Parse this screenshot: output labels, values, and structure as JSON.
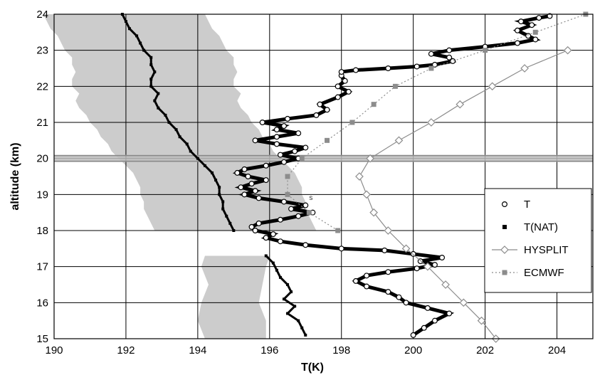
{
  "chart_data": {
    "type": "scatter",
    "xlabel": "T(K)",
    "ylabel": "altitude (km)",
    "xlim": [
      190,
      205
    ],
    "ylim": [
      15,
      24
    ],
    "xticks": [
      "190",
      "192",
      "194",
      "196",
      "198",
      "200",
      "202",
      "204"
    ],
    "yticks": [
      "15",
      "16",
      "17",
      "18",
      "19",
      "20",
      "21",
      "22",
      "23",
      "24"
    ],
    "grid": true,
    "legend_position": "lower-right",
    "annotation": "s",
    "highlight_band": {
      "altitude_km": 20.0,
      "color": "#bdbdbd"
    },
    "nat_uncertainty_band_color": "#cccccc",
    "series": [
      {
        "name": "T",
        "marker": "open-circle",
        "color": "#000000",
        "points": [
          [
            200.0,
            15.1
          ],
          [
            200.3,
            15.3
          ],
          [
            200.6,
            15.5
          ],
          [
            201.0,
            15.7
          ],
          [
            200.4,
            15.85
          ],
          [
            199.8,
            16.0
          ],
          [
            199.6,
            16.15
          ],
          [
            199.3,
            16.3
          ],
          [
            198.7,
            16.45
          ],
          [
            198.4,
            16.6
          ],
          [
            198.7,
            16.75
          ],
          [
            199.3,
            16.85
          ],
          [
            200.1,
            16.95
          ],
          [
            200.6,
            17.05
          ],
          [
            200.2,
            17.15
          ],
          [
            200.8,
            17.25
          ],
          [
            200.0,
            17.35
          ],
          [
            199.2,
            17.45
          ],
          [
            198.0,
            17.5
          ],
          [
            197.0,
            17.6
          ],
          [
            196.3,
            17.7
          ],
          [
            195.9,
            17.8
          ],
          [
            196.1,
            17.9
          ],
          [
            195.6,
            18.0
          ],
          [
            195.5,
            18.1
          ],
          [
            195.7,
            18.2
          ],
          [
            196.3,
            18.3
          ],
          [
            196.8,
            18.4
          ],
          [
            197.2,
            18.5
          ],
          [
            196.6,
            18.6
          ],
          [
            197.0,
            18.7
          ],
          [
            196.4,
            18.8
          ],
          [
            195.7,
            18.9
          ],
          [
            195.3,
            19.0
          ],
          [
            195.6,
            19.1
          ],
          [
            195.2,
            19.2
          ],
          [
            195.5,
            19.3
          ],
          [
            195.9,
            19.4
          ],
          [
            195.4,
            19.5
          ],
          [
            195.1,
            19.6
          ],
          [
            195.3,
            19.7
          ],
          [
            195.9,
            19.8
          ],
          [
            196.4,
            19.9
          ],
          [
            196.8,
            20.0
          ],
          [
            196.3,
            20.1
          ],
          [
            196.7,
            20.2
          ],
          [
            197.0,
            20.3
          ],
          [
            196.2,
            20.4
          ],
          [
            195.6,
            20.5
          ],
          [
            196.2,
            20.6
          ],
          [
            196.8,
            20.7
          ],
          [
            196.2,
            20.8
          ],
          [
            196.4,
            20.9
          ],
          [
            195.8,
            21.0
          ],
          [
            196.5,
            21.1
          ],
          [
            197.3,
            21.2
          ],
          [
            197.6,
            21.35
          ],
          [
            197.4,
            21.5
          ],
          [
            197.9,
            21.7
          ],
          [
            198.2,
            21.85
          ],
          [
            197.9,
            22.0
          ],
          [
            198.1,
            22.15
          ],
          [
            198.0,
            22.3
          ],
          [
            198.0,
            22.4
          ],
          [
            198.4,
            22.45
          ],
          [
            199.3,
            22.5
          ],
          [
            200.1,
            22.55
          ],
          [
            200.6,
            22.6
          ],
          [
            201.1,
            22.7
          ],
          [
            201.0,
            22.8
          ],
          [
            200.5,
            22.9
          ],
          [
            201.0,
            23.0
          ],
          [
            202.0,
            23.1
          ],
          [
            202.9,
            23.2
          ],
          [
            203.4,
            23.3
          ],
          [
            203.2,
            23.4
          ],
          [
            202.9,
            23.55
          ],
          [
            203.3,
            23.7
          ],
          [
            203.0,
            23.8
          ],
          [
            203.5,
            23.9
          ],
          [
            203.8,
            23.95
          ]
        ]
      },
      {
        "name": "T(NAT)",
        "marker": "filled-square",
        "color": "#000000",
        "points": [
          [
            197.0,
            15.1
          ],
          [
            196.9,
            15.3
          ],
          [
            196.8,
            15.5
          ],
          [
            196.5,
            15.7
          ],
          [
            196.7,
            15.9
          ],
          [
            196.4,
            16.1
          ],
          [
            196.6,
            16.3
          ],
          [
            196.5,
            16.5
          ],
          [
            196.3,
            16.7
          ],
          [
            196.2,
            16.9
          ],
          [
            196.1,
            17.1
          ],
          [
            195.9,
            17.3
          ],
          [
            195.0,
            18.0
          ],
          [
            194.9,
            18.2
          ],
          [
            194.8,
            18.4
          ],
          [
            194.7,
            18.6
          ],
          [
            194.7,
            18.8
          ],
          [
            194.6,
            19.0
          ],
          [
            194.6,
            19.2
          ],
          [
            194.5,
            19.4
          ],
          [
            194.4,
            19.6
          ],
          [
            194.2,
            19.8
          ],
          [
            194.0,
            20.0
          ],
          [
            193.8,
            20.2
          ],
          [
            193.7,
            20.4
          ],
          [
            193.5,
            20.6
          ],
          [
            193.4,
            20.8
          ],
          [
            193.2,
            21.0
          ],
          [
            193.1,
            21.2
          ],
          [
            192.9,
            21.4
          ],
          [
            192.8,
            21.6
          ],
          [
            192.9,
            21.8
          ],
          [
            192.7,
            22.0
          ],
          [
            192.7,
            22.2
          ],
          [
            192.8,
            22.4
          ],
          [
            192.7,
            22.6
          ],
          [
            192.7,
            22.8
          ],
          [
            192.5,
            23.0
          ],
          [
            192.4,
            23.2
          ],
          [
            192.3,
            23.4
          ],
          [
            192.1,
            23.6
          ],
          [
            192.0,
            23.8
          ],
          [
            191.9,
            24.0
          ]
        ]
      },
      {
        "name": "HYSPLIT",
        "marker": "open-diamond",
        "line": "solid",
        "color": "#8c8c8c",
        "points": [
          [
            202.3,
            15.0
          ],
          [
            201.9,
            15.5
          ],
          [
            201.4,
            16.0
          ],
          [
            200.9,
            16.5
          ],
          [
            200.4,
            17.0
          ],
          [
            199.8,
            17.5
          ],
          [
            199.3,
            18.0
          ],
          [
            198.9,
            18.5
          ],
          [
            198.7,
            19.0
          ],
          [
            198.5,
            19.5
          ],
          [
            198.8,
            20.0
          ],
          [
            199.6,
            20.5
          ],
          [
            200.5,
            21.0
          ],
          [
            201.3,
            21.5
          ],
          [
            202.2,
            22.0
          ],
          [
            203.1,
            22.5
          ],
          [
            204.3,
            23.0
          ]
        ]
      },
      {
        "name": "ECMWF",
        "marker": "filled-square",
        "line": "dotted",
        "color": "#8c8c8c",
        "points": [
          [
            197.9,
            18.0
          ],
          [
            197.1,
            18.5
          ],
          [
            196.5,
            19.0
          ],
          [
            196.5,
            19.5
          ],
          [
            196.9,
            20.0
          ],
          [
            197.6,
            20.5
          ],
          [
            198.3,
            21.0
          ],
          [
            198.9,
            21.5
          ],
          [
            199.5,
            22.0
          ],
          [
            200.5,
            22.5
          ],
          [
            202.0,
            23.0
          ],
          [
            203.4,
            23.5
          ],
          [
            204.8,
            24.0
          ]
        ]
      }
    ]
  }
}
